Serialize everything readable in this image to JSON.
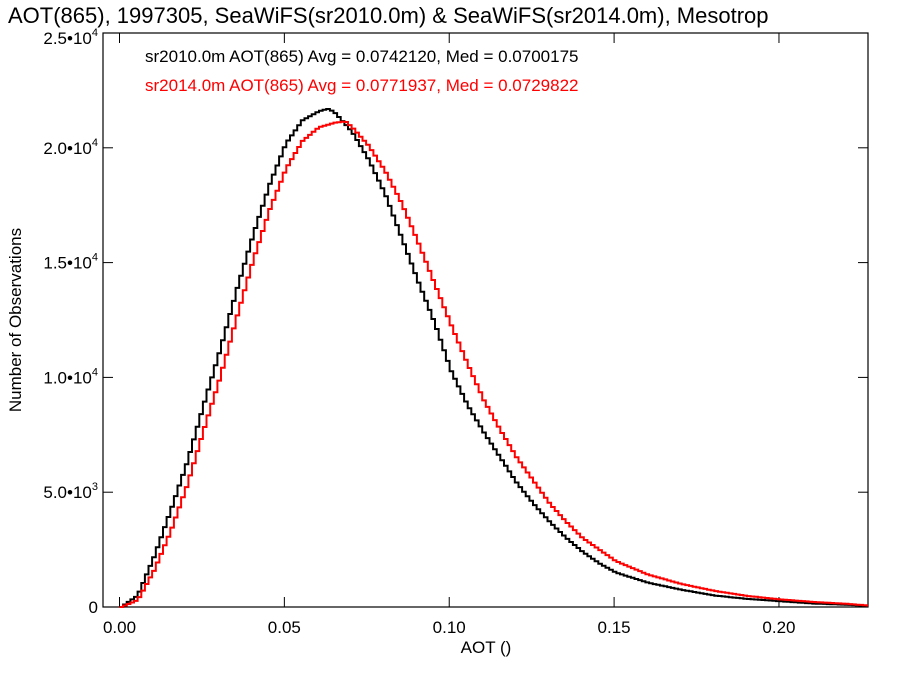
{
  "chart_data": {
    "type": "line",
    "title": "AOT(865), 1997305, SeaWiFS(sr2010.0m) & SeaWiFS(sr2014.0m), Mesotrop",
    "xlabel": "AOT ()",
    "ylabel": "Number of Observations",
    "xlim": [
      -0.005,
      0.227
    ],
    "ylim": [
      0,
      25000
    ],
    "x_ticks": [
      {
        "value": 0.0,
        "label": "0.00"
      },
      {
        "value": 0.05,
        "label": "0.05"
      },
      {
        "value": 0.1,
        "label": "0.10"
      },
      {
        "value": 0.15,
        "label": "0.15"
      },
      {
        "value": 0.2,
        "label": "0.20"
      }
    ],
    "y_ticks": [
      {
        "value": 0,
        "mantissa": "0",
        "exp": ""
      },
      {
        "value": 5000,
        "mantissa": "5.0•10",
        "exp": "3"
      },
      {
        "value": 10000,
        "mantissa": "1.0•10",
        "exp": "4"
      },
      {
        "value": 15000,
        "mantissa": "1.5•10",
        "exp": "4"
      },
      {
        "value": 20000,
        "mantissa": "2.0•10",
        "exp": "4"
      },
      {
        "value": 25000,
        "mantissa": "2.5•10",
        "exp": "4"
      }
    ],
    "grid": false,
    "series": [
      {
        "name": "sr2010.0m",
        "color": "#000000",
        "legend": "sr2010.0m AOT(865) Avg = 0.0742120, Med = 0.0700175",
        "x": [
          0.0,
          0.005,
          0.01,
          0.015,
          0.02,
          0.025,
          0.03,
          0.035,
          0.04,
          0.045,
          0.05,
          0.055,
          0.06,
          0.063,
          0.065,
          0.07,
          0.075,
          0.08,
          0.085,
          0.09,
          0.095,
          0.1,
          0.105,
          0.11,
          0.115,
          0.12,
          0.125,
          0.13,
          0.135,
          0.14,
          0.145,
          0.15,
          0.16,
          0.17,
          0.18,
          0.19,
          0.2,
          0.21,
          0.22,
          0.227
        ],
        "y": [
          0,
          500,
          2200,
          4200,
          6300,
          8800,
          11200,
          13800,
          16200,
          18400,
          20200,
          21200,
          21600,
          21700,
          21500,
          20700,
          19500,
          18000,
          16100,
          14200,
          12400,
          10300,
          8800,
          7600,
          6500,
          5400,
          4500,
          3700,
          3000,
          2400,
          1900,
          1500,
          1050,
          750,
          500,
          350,
          250,
          150,
          100,
          40
        ]
      },
      {
        "name": "sr2014.0m",
        "color": "#ff0000",
        "legend": "sr2014.0m AOT(865) Avg = 0.0771937, Med = 0.0729822",
        "x": [
          0.0,
          0.005,
          0.01,
          0.015,
          0.02,
          0.025,
          0.03,
          0.035,
          0.04,
          0.045,
          0.05,
          0.055,
          0.06,
          0.065,
          0.068,
          0.07,
          0.075,
          0.08,
          0.085,
          0.09,
          0.095,
          0.1,
          0.105,
          0.11,
          0.115,
          0.12,
          0.125,
          0.13,
          0.135,
          0.14,
          0.145,
          0.15,
          0.16,
          0.17,
          0.18,
          0.19,
          0.2,
          0.21,
          0.22,
          0.227
        ],
        "y": [
          0,
          300,
          1600,
          3300,
          5300,
          7700,
          10000,
          12600,
          15100,
          17300,
          19100,
          20300,
          20900,
          21100,
          21150,
          20900,
          20100,
          19000,
          17600,
          15900,
          14100,
          12300,
          10600,
          9000,
          7700,
          6500,
          5500,
          4500,
          3700,
          3000,
          2500,
          2000,
          1400,
          1000,
          700,
          480,
          330,
          220,
          140,
          60
        ]
      }
    ]
  }
}
